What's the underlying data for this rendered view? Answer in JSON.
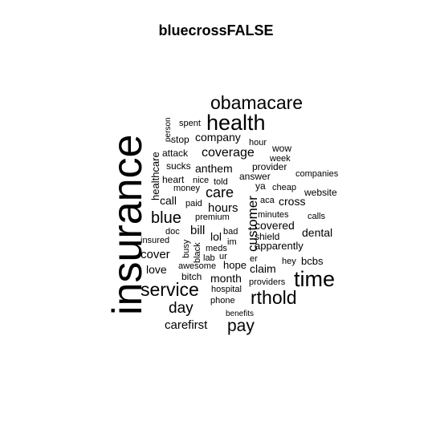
{
  "title": "bluecrossFALSE",
  "text_color": "#000000",
  "background": "#ffffff",
  "words": [
    {
      "text": "insurance",
      "vertical": true
    },
    {
      "text": "obamacare",
      "vertical": false
    },
    {
      "text": "health",
      "vertical": false
    },
    {
      "text": "time",
      "vertical": false
    },
    {
      "text": "service",
      "vertical": false
    },
    {
      "text": "rthold",
      "vertical": false
    },
    {
      "text": "pay",
      "vertical": false
    },
    {
      "text": "blue",
      "vertical": false
    },
    {
      "text": "day",
      "vertical": false
    },
    {
      "text": "care",
      "vertical": false
    },
    {
      "text": "coverage",
      "vertical": false
    },
    {
      "text": "customer",
      "vertical": true
    },
    {
      "text": "carefirst",
      "vertical": false
    },
    {
      "text": "cover",
      "vertical": false
    },
    {
      "text": "hours",
      "vertical": false
    },
    {
      "text": "bill",
      "vertical": false
    },
    {
      "text": "company",
      "vertical": false
    },
    {
      "text": "anthem",
      "vertical": false
    },
    {
      "text": "covered",
      "vertical": false
    },
    {
      "text": "month",
      "vertical": false
    },
    {
      "text": "claim",
      "vertical": false
    },
    {
      "text": "cross",
      "vertical": false
    },
    {
      "text": "dental",
      "vertical": false
    },
    {
      "text": "call",
      "vertical": false
    },
    {
      "text": "love",
      "vertical": false
    },
    {
      "text": "lol",
      "vertical": false
    },
    {
      "text": "healthcare",
      "vertical": true
    },
    {
      "text": "apparently",
      "vertical": false
    },
    {
      "text": "shield",
      "vertical": false
    },
    {
      "text": "bcbs",
      "vertical": false
    },
    {
      "text": "hope",
      "vertical": false
    },
    {
      "text": "provider",
      "vertical": false
    },
    {
      "text": "heart",
      "vertical": false
    },
    {
      "text": "stop",
      "vertical": false
    },
    {
      "text": "wow",
      "vertical": false
    },
    {
      "text": "bitch",
      "vertical": false
    },
    {
      "text": "answer",
      "vertical": false
    },
    {
      "text": "aca",
      "vertical": false
    },
    {
      "text": "website",
      "vertical": false
    },
    {
      "text": "spent",
      "vertical": false
    },
    {
      "text": "hour",
      "vertical": false
    },
    {
      "text": "week",
      "vertical": false
    },
    {
      "text": "attack",
      "vertical": false
    },
    {
      "text": "sucks",
      "vertical": false
    },
    {
      "text": "nice",
      "vertical": false
    },
    {
      "text": "told",
      "vertical": false
    },
    {
      "text": "money",
      "vertical": false
    },
    {
      "text": "ya",
      "vertical": false
    },
    {
      "text": "cheap",
      "vertical": false
    },
    {
      "text": "companies",
      "vertical": false
    },
    {
      "text": "paid",
      "vertical": false
    },
    {
      "text": "premium",
      "vertical": false
    },
    {
      "text": "minutes",
      "vertical": false
    },
    {
      "text": "calls",
      "vertical": false
    },
    {
      "text": "doc",
      "vertical": false
    },
    {
      "text": "bad",
      "vertical": false
    },
    {
      "text": "insured",
      "vertical": false
    },
    {
      "text": "busy",
      "vertical": true
    },
    {
      "text": "black",
      "vertical": true
    },
    {
      "text": "meds",
      "vertical": false
    },
    {
      "text": "im",
      "vertical": false
    },
    {
      "text": "lab",
      "vertical": false
    },
    {
      "text": "ur",
      "vertical": false
    },
    {
      "text": "er",
      "vertical": false
    },
    {
      "text": "hey",
      "vertical": false
    },
    {
      "text": "awesome",
      "vertical": false
    },
    {
      "text": "hospital",
      "vertical": false
    },
    {
      "text": "providers",
      "vertical": false
    },
    {
      "text": "phone",
      "vertical": false
    },
    {
      "text": "benefits",
      "vertical": false
    },
    {
      "text": "person",
      "vertical": true
    }
  ]
}
